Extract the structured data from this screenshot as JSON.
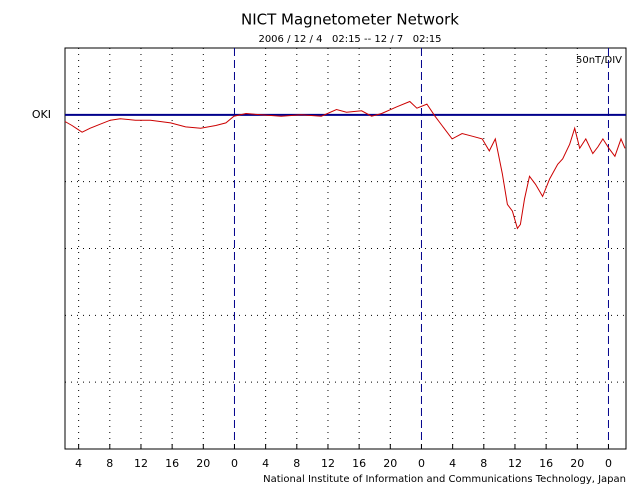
{
  "chart_data": {
    "type": "line",
    "title": "NICT Magnetometer Network",
    "subtitle": "2006 / 12 / 4   02:15 -- 12 / 7   02:15",
    "scale_label": "50nT/DIV",
    "station": "OKI",
    "footer": "National Institute of Information and Communications Technology, Japan",
    "x": [
      2.25,
      3.15,
      4.44,
      5.48,
      6.77,
      8.06,
      9.35,
      11.28,
      13.22,
      15.8,
      17.73,
      19.67,
      21.6,
      22.9,
      23.93,
      25.48,
      27.41,
      30.0,
      32.57,
      35.15,
      37.09,
      38.38,
      40.31,
      41.6,
      42.9,
      44.83,
      46.5,
      47.41,
      48.7,
      49.74,
      50.64,
      51.93,
      53.22,
      54.51,
      55.8,
      56.7,
      57.48,
      58.38,
      59.03,
      59.67,
      60.31,
      60.7,
      61.22,
      61.86,
      62.64,
      63.54,
      64.44,
      65.48,
      66.12,
      67.03,
      67.67,
      68.31,
      69.09,
      69.99,
      70.64,
      71.28,
      72.06,
      72.83,
      73.61,
      74.12
    ],
    "series": [
      {
        "name": "OKI",
        "color": "#cc0000",
        "values": [
          -5,
          -8,
          -13,
          -10,
          -7,
          -4,
          -3,
          -4,
          -4,
          -6,
          -9,
          -10,
          -8,
          -6,
          -1,
          1,
          0,
          -1,
          0,
          -1,
          4,
          2,
          3,
          -1,
          1,
          6,
          10,
          5,
          8,
          -1,
          -8,
          -18,
          -14,
          -16,
          -18,
          -27,
          -18,
          -44,
          -67,
          -72,
          -85,
          -82,
          -63,
          -46,
          -52,
          -61,
          -48,
          -37,
          -33,
          -22,
          -10,
          -25,
          -18,
          -29,
          -24,
          -18,
          -25,
          -31,
          -18,
          -25
        ]
      }
    ],
    "xlim": [
      2.25,
      74.25
    ],
    "xticks": [
      4,
      8,
      12,
      16,
      20,
      {
        "value": 24,
        "label": "0"
      },
      {
        "value": 28,
        "label": "4"
      },
      {
        "value": 32,
        "label": "8"
      },
      {
        "value": 36,
        "label": "12"
      },
      {
        "value": 40,
        "label": "16"
      },
      {
        "value": 44,
        "label": "20"
      },
      {
        "value": 48,
        "label": "0"
      },
      {
        "value": 52,
        "label": "4"
      },
      {
        "value": 56,
        "label": "8"
      },
      {
        "value": 60,
        "label": "12"
      },
      {
        "value": 64,
        "label": "16"
      },
      {
        "value": 68,
        "label": "20"
      },
      {
        "value": 72,
        "label": "0"
      }
    ],
    "ylim": [
      -250,
      50
    ],
    "yticks": [
      -250,
      -200,
      -150,
      -100,
      -50,
      0,
      50
    ],
    "grid": true,
    "accent_color": "#00008b"
  }
}
